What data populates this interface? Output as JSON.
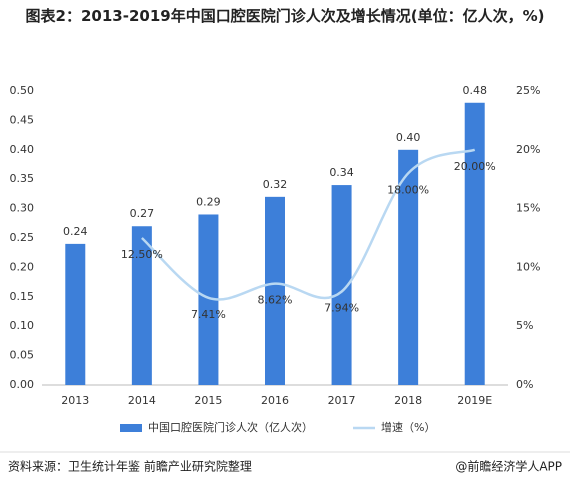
{
  "chart_data": {
    "type": "bar-line",
    "title": "图表2：2013-2019年中国口腔医院门诊人次及增长情况(单位：亿人次，%)",
    "categories": [
      "2013",
      "2014",
      "2015",
      "2016",
      "2017",
      "2018",
      "2019E"
    ],
    "series": [
      {
        "name": "中国口腔医院门诊人次（亿人次）",
        "type": "bar",
        "color": "#3d7fd9",
        "values": [
          0.24,
          0.27,
          0.29,
          0.32,
          0.34,
          0.4,
          0.48
        ],
        "value_labels": [
          "0.24",
          "0.27",
          "0.29",
          "0.32",
          "0.34",
          "0.40",
          "0.48"
        ]
      },
      {
        "name": "增速（%）",
        "type": "line",
        "axis": "y2",
        "color": "#b9d8f2",
        "values": [
          null,
          12.5,
          7.41,
          8.62,
          7.94,
          18.0,
          20.0
        ],
        "value_labels": [
          null,
          "12.50%",
          "7.41%",
          "8.62%",
          "7.94%",
          "18.00%",
          "20.00%"
        ]
      }
    ],
    "ylim": [
      0,
      0.5
    ],
    "yticks": [
      {
        "value": 0,
        "label": "0.00"
      },
      {
        "value": 0.05,
        "label": "0.05"
      },
      {
        "value": 0.1,
        "label": "0.10"
      },
      {
        "value": 0.15,
        "label": "0.15"
      },
      {
        "value": 0.2,
        "label": "0.20"
      },
      {
        "value": 0.25,
        "label": "0.25"
      },
      {
        "value": 0.3,
        "label": "0.30"
      },
      {
        "value": 0.35,
        "label": "0.35"
      },
      {
        "value": 0.4,
        "label": "0.40"
      },
      {
        "value": 0.45,
        "label": "0.45"
      },
      {
        "value": 0.5,
        "label": "0.50"
      }
    ],
    "y2lim": [
      0,
      25
    ],
    "y2ticks": [
      {
        "value": 0,
        "label": "0%"
      },
      {
        "value": 5,
        "label": "5%"
      },
      {
        "value": 10,
        "label": "10%"
      },
      {
        "value": 15,
        "label": "15%"
      },
      {
        "value": 20,
        "label": "20%"
      },
      {
        "value": 25,
        "label": "25%"
      }
    ],
    "legend": "bottom",
    "source": "资料来源：卫生统计年鉴 前瞻产业研究院整理",
    "credit": "@前瞻经济学人APP"
  }
}
